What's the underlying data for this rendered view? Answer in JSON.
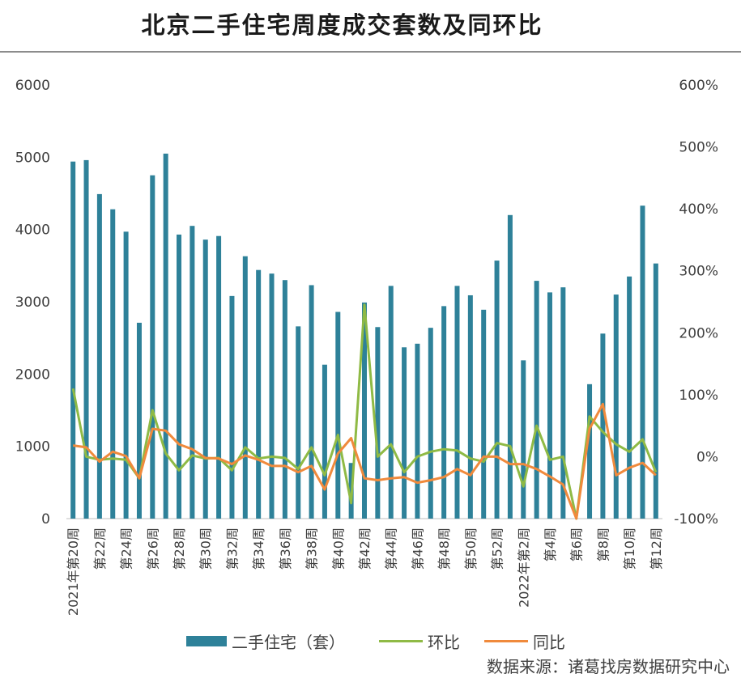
{
  "title": "北京二手住宅周度成交套数及同环比",
  "legend": {
    "bar": "二手住宅（套）",
    "ring": "环比",
    "yoy": "同比"
  },
  "source": "数据来源：诸葛找房数据研究中心",
  "colors": {
    "bar": "#2e8199",
    "ring": "#8fba45",
    "yoy": "#f08a3c",
    "axis": "#bfbfbf",
    "text": "#404040"
  },
  "chart_data": {
    "type": "bar",
    "x_tick_labels": [
      "2021年第20周",
      "第22周",
      "第24周",
      "第26周",
      "第28周",
      "第30周",
      "第32周",
      "第34周",
      "第36周",
      "第38周",
      "第40周",
      "第42周",
      "第44周",
      "第46周",
      "第48周",
      "第50周",
      "第52周",
      "2022年第2周",
      "第4周",
      "第6周",
      "第8周",
      "第10周",
      "第12周"
    ],
    "left_axis": {
      "min": 0,
      "max": 6000,
      "ticks": [
        "0",
        "1000",
        "2000",
        "3000",
        "4000",
        "5000",
        "6000"
      ]
    },
    "right_axis": {
      "min": -100,
      "max": 600,
      "ticks": [
        "-100%",
        "0%",
        "100%",
        "200%",
        "300%",
        "400%",
        "500%",
        "600%"
      ]
    },
    "series": [
      {
        "name": "二手住宅（套）",
        "type": "bar",
        "axis": "left",
        "values": [
          4940,
          4960,
          4490,
          4280,
          3970,
          2710,
          4750,
          5050,
          3930,
          4050,
          3860,
          3910,
          3080,
          3630,
          3440,
          3390,
          3300,
          2660,
          3230,
          2130,
          2860,
          770,
          2990,
          2650,
          3220,
          2370,
          2420,
          2640,
          2940,
          3220,
          3090,
          2890,
          3570,
          4200,
          2190,
          3290,
          3130,
          3200,
          0,
          1860,
          2560,
          3100,
          3350,
          4330,
          3530
        ]
      },
      {
        "name": "环比",
        "type": "line",
        "axis": "right",
        "values": [
          110,
          0,
          -5,
          -3,
          -5,
          -35,
          75,
          5,
          -22,
          2,
          -3,
          -2,
          -22,
          15,
          -3,
          0,
          -2,
          -20,
          15,
          -30,
          35,
          -75,
          245,
          0,
          20,
          -25,
          0,
          8,
          12,
          10,
          -3,
          -8,
          22,
          17,
          -48,
          50,
          -5,
          0,
          -100,
          65,
          40,
          20,
          8,
          28,
          -25
        ]
      },
      {
        "name": "同比",
        "type": "line",
        "axis": "right",
        "values": [
          18,
          15,
          -8,
          8,
          1,
          -35,
          45,
          42,
          20,
          12,
          -2,
          -3,
          -12,
          2,
          -5,
          -15,
          -15,
          -25,
          -15,
          -53,
          5,
          30,
          -35,
          -38,
          -35,
          -33,
          -42,
          -38,
          -33,
          -20,
          -30,
          0,
          0,
          -12,
          -12,
          -20,
          -32,
          -45,
          -100,
          45,
          85,
          -30,
          -18,
          -10,
          -30
        ]
      }
    ]
  }
}
